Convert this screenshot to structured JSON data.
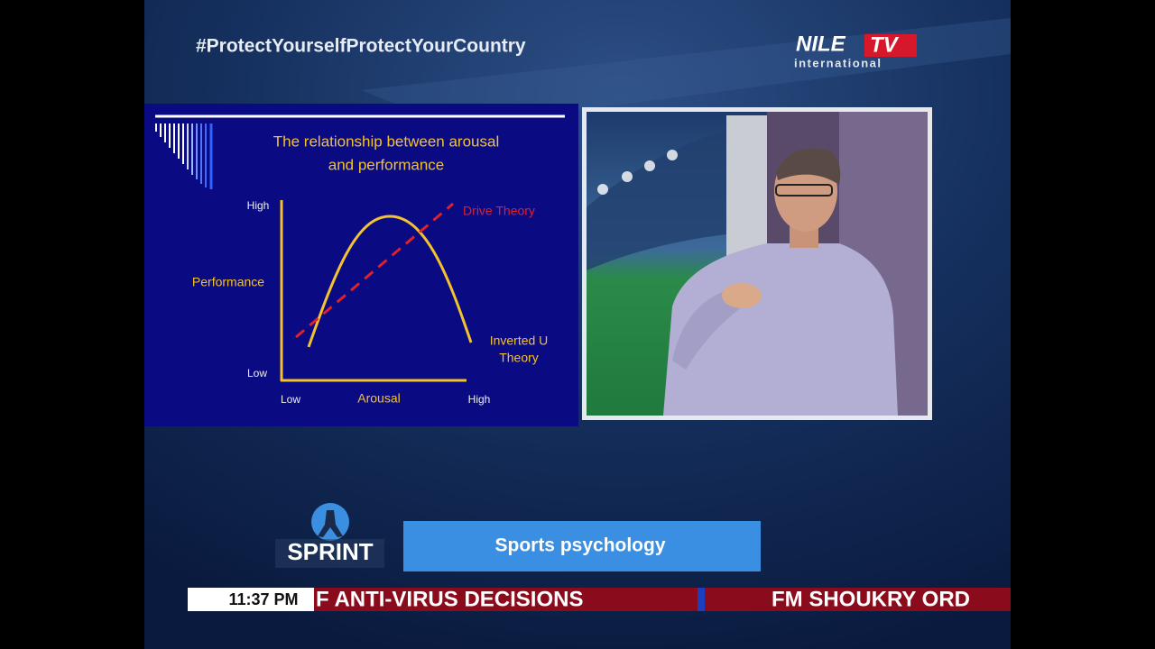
{
  "header": {
    "hashtag": "#ProtectYourselfProtectYourCountry",
    "logo": {
      "parts": [
        "NILE",
        "TV"
      ],
      "subtitle": "international"
    }
  },
  "slide": {
    "title": [
      "The relationship between arousal",
      "and performance"
    ],
    "y_axis": {
      "label": "Performance",
      "high": "High",
      "low": "Low"
    },
    "x_axis": {
      "label": "Arousal",
      "low": "Low",
      "high": "High"
    },
    "drive_theory": "Drive Theory",
    "inverted_u": [
      "Inverted U",
      "Theory"
    ]
  },
  "program": {
    "logo": "SPRINT",
    "topic": "Sports psychology"
  },
  "ticker": {
    "time": "11:37 PM",
    "items": [
      "F ANTI-VIRUS DECISIONS",
      "FM SHOUKRY ORD"
    ]
  }
}
